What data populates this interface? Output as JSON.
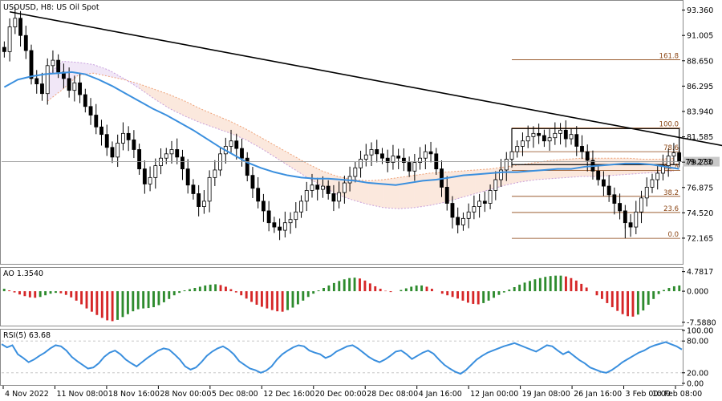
{
  "chart_data": [
    {
      "type": "candlestick",
      "title": "USOUSD, H8:  US Oil Spot",
      "symbol": "USOUSD",
      "timeframe": "H8",
      "instrument": "US Oil Spot",
      "current_price": "79.273",
      "ylim": [
        70.0,
        94.0
      ],
      "y_ticks": [
        "93.360",
        "91.005",
        "88.650",
        "86.295",
        "83.940",
        "81.585",
        "79.230",
        "76.875",
        "74.520",
        "72.165"
      ],
      "x_ticks": [
        "4 Nov 2022",
        "11 Nov 08:00",
        "18 Nov 16:00",
        "28 Nov 00:00",
        "5 Dec 08:00",
        "12 Dec 16:00",
        "20 Dec 00:00",
        "28 Dec 08:00",
        "4 Jan 16:00",
        "12 Jan 00:00",
        "19 Jan 08:00",
        "26 Jan 16:00",
        "3 Feb 00:00",
        "10 Feb 08:00"
      ],
      "close_series": [
        89.5,
        91.8,
        92.6,
        91.0,
        89.6,
        87.0,
        86.5,
        85.6,
        88.2,
        88.7,
        87.6,
        87.0,
        85.9,
        86.6,
        85.5,
        84.4,
        83.6,
        82.5,
        81.8,
        80.6,
        79.7,
        81.0,
        81.9,
        81.3,
        80.4,
        78.6,
        77.2,
        77.8,
        78.9,
        79.6,
        80.0,
        80.4,
        79.7,
        78.6,
        77.1,
        76.3,
        75.1,
        75.6,
        77.8,
        78.5,
        80.0,
        80.7,
        81.2,
        80.5,
        79.6,
        78.0,
        76.8,
        75.6,
        74.7,
        73.6,
        73.2,
        72.9,
        73.6,
        73.9,
        74.6,
        75.6,
        76.6,
        77.1,
        76.7,
        77.0,
        76.3,
        75.6,
        76.4,
        77.3,
        77.9,
        78.7,
        79.5,
        79.9,
        80.4,
        80.0,
        79.6,
        79.2,
        79.8,
        79.6,
        79.2,
        78.4,
        79.2,
        79.6,
        80.2,
        80.0,
        78.6,
        76.9,
        75.4,
        74.1,
        73.4,
        74.0,
        74.6,
        75.1,
        75.6,
        75.4,
        76.6,
        77.6,
        78.5,
        79.5,
        80.2,
        80.7,
        81.2,
        81.6,
        81.9,
        81.7,
        81.2,
        81.5,
        81.9,
        82.2,
        81.4,
        81.8,
        80.7,
        80.2,
        79.4,
        78.4,
        77.6,
        77.0,
        76.2,
        75.4,
        74.7,
        73.6,
        73.2,
        74.6,
        75.9,
        76.9,
        77.6,
        78.2,
        78.9,
        79.8,
        80.1,
        79.3
      ],
      "ma_series": [
        86.2,
        86.9,
        87.2,
        87.4,
        87.5,
        87.6,
        87.4,
        86.9,
        86.3,
        85.6,
        84.9,
        84.2,
        83.6,
        82.9,
        82.2,
        81.4,
        80.6,
        79.9,
        79.2,
        78.7,
        78.3,
        78.0,
        77.8,
        77.7,
        77.7,
        77.6,
        77.5,
        77.3,
        77.2,
        77.1,
        77.3,
        77.5,
        77.6,
        77.8,
        78.0,
        78.1,
        78.2,
        78.3,
        78.3,
        78.4,
        78.5,
        78.6,
        78.6,
        78.8,
        78.9,
        79.0,
        79.1,
        79.1,
        79.0,
        78.8,
        78.6
      ],
      "cloud_upper": [
        84.9,
        86.0,
        87.3,
        87.5,
        87.2,
        86.9,
        86.5,
        86.0,
        85.5,
        84.9,
        84.2,
        83.6,
        83.0,
        82.3,
        81.5,
        80.7,
        79.9,
        79.1,
        78.4,
        77.9,
        77.6,
        77.5,
        77.6,
        77.8,
        78.0,
        78.2,
        78.3,
        78.4,
        78.5,
        78.6,
        78.8,
        79.0,
        79.2,
        79.4,
        79.5,
        79.6,
        79.6,
        79.6,
        79.6,
        79.5,
        79.5,
        79.6
      ],
      "cloud_lower": [
        87.3,
        88.6,
        88.5,
        88.3,
        87.8,
        87.0,
        86.1,
        85.1,
        84.2,
        83.5,
        82.9,
        82.4,
        81.9,
        81.3,
        80.5,
        79.6,
        78.7,
        77.8,
        77.0,
        76.2,
        75.7,
        75.3,
        75.0,
        74.9,
        75.0,
        75.2,
        75.5,
        75.9,
        76.3,
        76.7,
        77.1,
        77.4,
        77.6,
        77.7,
        77.8,
        77.9,
        77.9,
        78.0,
        78.1,
        78.2,
        78.3,
        78.4
      ],
      "trendline": {
        "from": [
          1,
          93.2
        ],
        "to": [
          138,
          80.3
        ]
      },
      "fibonacci": {
        "levels": [
          "161.8",
          "100.0",
          "78.6",
          "61.8",
          "38.2",
          "23.6",
          "0.0"
        ],
        "prices": [
          88.75,
          82.4,
          80.2,
          78.45,
          76.05,
          74.55,
          72.15
        ]
      },
      "rectangle": {
        "high": 82.35,
        "low": 79.0
      }
    },
    {
      "type": "bar",
      "indicator": "AO",
      "label": "AO 1.3540",
      "ylim": [
        -8.0,
        5.3
      ],
      "y_ticks": [
        "4.7817",
        "0.000",
        "-7.5880"
      ],
      "values": [
        0.6,
        0.2,
        -0.3,
        -0.8,
        -1.2,
        -1.5,
        -1.6,
        -1.4,
        -1.0,
        -0.6,
        -0.4,
        -0.5,
        -0.9,
        -1.5,
        -2.3,
        -3.2,
        -4.2,
        -5.0,
        -5.8,
        -6.5,
        -7.1,
        -7.3,
        -7.0,
        -6.3,
        -5.6,
        -4.9,
        -4.4,
        -4.2,
        -4.1,
        -3.9,
        -3.4,
        -2.7,
        -1.9,
        -1.0,
        -0.4,
        0.2,
        0.5,
        0.8,
        1.1,
        1.4,
        1.6,
        1.7,
        1.5,
        1.1,
        0.5,
        -0.3,
        -1.0,
        -1.8,
        -2.6,
        -3.3,
        -3.8,
        -4.2,
        -4.6,
        -4.9,
        -5.0,
        -4.6,
        -4.0,
        -3.2,
        -2.3,
        -1.4,
        -0.6,
        0.2,
        0.8,
        1.4,
        2.0,
        2.5,
        2.9,
        3.2,
        3.3,
        3.1,
        2.6,
        1.9,
        1.2,
        0.6,
        0.1,
        -0.2,
        0.0,
        0.3,
        0.7,
        1.1,
        1.4,
        1.4,
        1.1,
        0.6,
        0.0,
        -0.6,
        -1.0,
        -1.4,
        -1.8,
        -2.3,
        -2.8,
        -3.1,
        -3.2,
        -2.9,
        -2.3,
        -1.6,
        -0.9,
        -0.3,
        0.4,
        1.0,
        1.6,
        2.1,
        2.5,
        2.9,
        3.2,
        3.5,
        3.7,
        3.8,
        3.8,
        3.6,
        3.2,
        2.6,
        1.8,
        0.9,
        0.0,
        -1.0,
        -1.9,
        -2.9,
        -3.9,
        -4.8,
        -5.6,
        -6.1,
        -6.2,
        -5.7,
        -4.7,
        -3.3,
        -1.9,
        -0.7,
        0.3,
        0.8,
        1.2,
        1.4
      ]
    },
    {
      "type": "line",
      "indicator": "RSI",
      "label": "RSI(5) 63.68",
      "ylim": [
        0,
        100
      ],
      "y_ticks": [
        "100.00",
        "80.00",
        "20.00",
        "0.00"
      ],
      "values": [
        74,
        68,
        72,
        55,
        48,
        40,
        45,
        52,
        58,
        66,
        72,
        70,
        62,
        50,
        42,
        35,
        28,
        30,
        38,
        50,
        58,
        62,
        55,
        45,
        38,
        32,
        40,
        48,
        55,
        62,
        66,
        64,
        55,
        45,
        32,
        26,
        30,
        40,
        52,
        60,
        66,
        70,
        64,
        55,
        42,
        35,
        28,
        25,
        20,
        24,
        32,
        45,
        55,
        62,
        68,
        72,
        70,
        62,
        58,
        55,
        48,
        52,
        60,
        65,
        70,
        72,
        66,
        58,
        50,
        44,
        40,
        45,
        52,
        60,
        62,
        55,
        46,
        52,
        58,
        62,
        56,
        45,
        35,
        28,
        22,
        18,
        25,
        35,
        45,
        52,
        58,
        62,
        66,
        70,
        73,
        76,
        72,
        68,
        64,
        60,
        66,
        72,
        70,
        62,
        55,
        60,
        52,
        44,
        38,
        30,
        26,
        22,
        20,
        25,
        32,
        40,
        46,
        52,
        58,
        62,
        68,
        72,
        75,
        78,
        74,
        70,
        64
      ]
    }
  ],
  "colors": {
    "bull": "#000000",
    "bear": "#000000",
    "ma": "#3a8fde",
    "trendline": "#000000",
    "fib": "#8b4513",
    "cloud_up": "#e87f45",
    "cloud_dn": "#b27bd0",
    "ao_up": "#2e8b2e",
    "ao_dn": "#d62728",
    "rsi": "#3a8fde",
    "grid": "#cfcfcf"
  }
}
